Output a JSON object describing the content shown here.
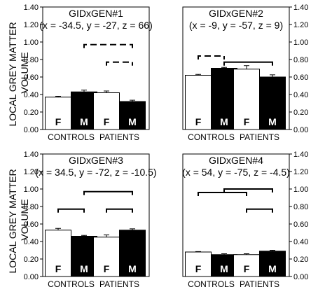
{
  "figure": {
    "ylabel_lines": [
      "LOCAL GREY MATTER",
      "VOLUME"
    ]
  },
  "chart_data": [
    {
      "type": "bar",
      "title": "GIDxGEN#1",
      "subtitle": "(x = -34.5, y = -27, z = 66)",
      "groups": [
        "CONTROLS",
        "PATIENTS"
      ],
      "bar_labels": [
        "F",
        "M"
      ],
      "values": [
        [
          0.37,
          0.43
        ],
        [
          0.42,
          0.32
        ]
      ],
      "errors": [
        [
          0.01,
          0.02
        ],
        [
          0.02,
          0.015
        ]
      ],
      "ylim": [
        0,
        1.4
      ],
      "yticks": [
        "0.00",
        "0.20",
        "0.40",
        "0.60",
        "0.80",
        "1.00",
        "1.20",
        "1.40"
      ],
      "ytick_side": "left",
      "comparisons": [
        {
          "from": [
            0,
            1
          ],
          "to": [
            1,
            1
          ],
          "level": 0.97,
          "style": "dashed"
        },
        {
          "from": [
            1,
            0
          ],
          "to": [
            1,
            1
          ],
          "level": 0.77,
          "style": "dashed"
        }
      ]
    },
    {
      "type": "bar",
      "title": "GIDxGEN#2",
      "subtitle": "(x = -9, y =  -57, z = 9)",
      "groups": [
        "CONTROLS",
        "PATIENTS"
      ],
      "bar_labels": [
        "F",
        "M"
      ],
      "values": [
        [
          0.62,
          0.7
        ],
        [
          0.69,
          0.6
        ]
      ],
      "errors": [
        [
          0.01,
          0.01
        ],
        [
          0.04,
          0.025
        ]
      ],
      "ylim": [
        0,
        1.4
      ],
      "yticks": [
        "0.00",
        "0.20",
        "0.40",
        "0.60",
        "0.80",
        "1.00",
        "1.20",
        "1.40"
      ],
      "ytick_side": "right",
      "comparisons": [
        {
          "from": [
            0,
            0
          ],
          "to": [
            0,
            1
          ],
          "level": 0.84,
          "style": "dashed"
        },
        {
          "from": [
            0,
            1
          ],
          "to": [
            1,
            1
          ],
          "level": 0.77,
          "style": "solid"
        }
      ]
    },
    {
      "type": "bar",
      "title": "GIDxGEN#3",
      "subtitle": "(x = 34.5, y = -72, z = -10.5)",
      "groups": [
        "CONTROLS",
        "PATIENTS"
      ],
      "bar_labels": [
        "F",
        "M"
      ],
      "values": [
        [
          0.53,
          0.46
        ],
        [
          0.45,
          0.53
        ]
      ],
      "errors": [
        [
          0.02,
          0.01
        ],
        [
          0.025,
          0.015
        ]
      ],
      "ylim": [
        0,
        1.4
      ],
      "yticks": [
        "0.00",
        "0.20",
        "0.40",
        "0.60",
        "0.80",
        "1.00",
        "1.20",
        "1.40"
      ],
      "ytick_side": "left",
      "comparisons": [
        {
          "from": [
            0,
            1
          ],
          "to": [
            1,
            1
          ],
          "level": 0.97,
          "style": "solid"
        },
        {
          "from": [
            0,
            0
          ],
          "to": [
            0,
            1
          ],
          "level": 0.77,
          "style": "solid"
        },
        {
          "from": [
            1,
            0
          ],
          "to": [
            1,
            1
          ],
          "level": 0.77,
          "style": "solid"
        }
      ]
    },
    {
      "type": "bar",
      "title": "GIDxGEN#4",
      "subtitle": "(x = 54, y = -75, z = -4.5)",
      "groups": [
        "CONTROLS",
        "PATIENTS"
      ],
      "bar_labels": [
        "F",
        "M"
      ],
      "values": [
        [
          0.28,
          0.25
        ],
        [
          0.25,
          0.29
        ]
      ],
      "errors": [
        [
          0.005,
          0.01
        ],
        [
          0.01,
          0.01
        ]
      ],
      "ylim": [
        0,
        1.4
      ],
      "yticks": [
        "0.00",
        "0.20",
        "0.40",
        "0.60",
        "0.80",
        "1.00",
        "1.20",
        "1.40"
      ],
      "ytick_side": "right",
      "comparisons": [
        {
          "from": [
            0,
            0
          ],
          "to": [
            1,
            0
          ],
          "level": 0.96,
          "style": "solid"
        },
        {
          "from": [
            0,
            1
          ],
          "to": [
            1,
            1
          ],
          "level": 1.0,
          "style": "solid"
        },
        {
          "from": [
            1,
            0
          ],
          "to": [
            1,
            1
          ],
          "level": 0.77,
          "style": "solid"
        }
      ]
    }
  ]
}
